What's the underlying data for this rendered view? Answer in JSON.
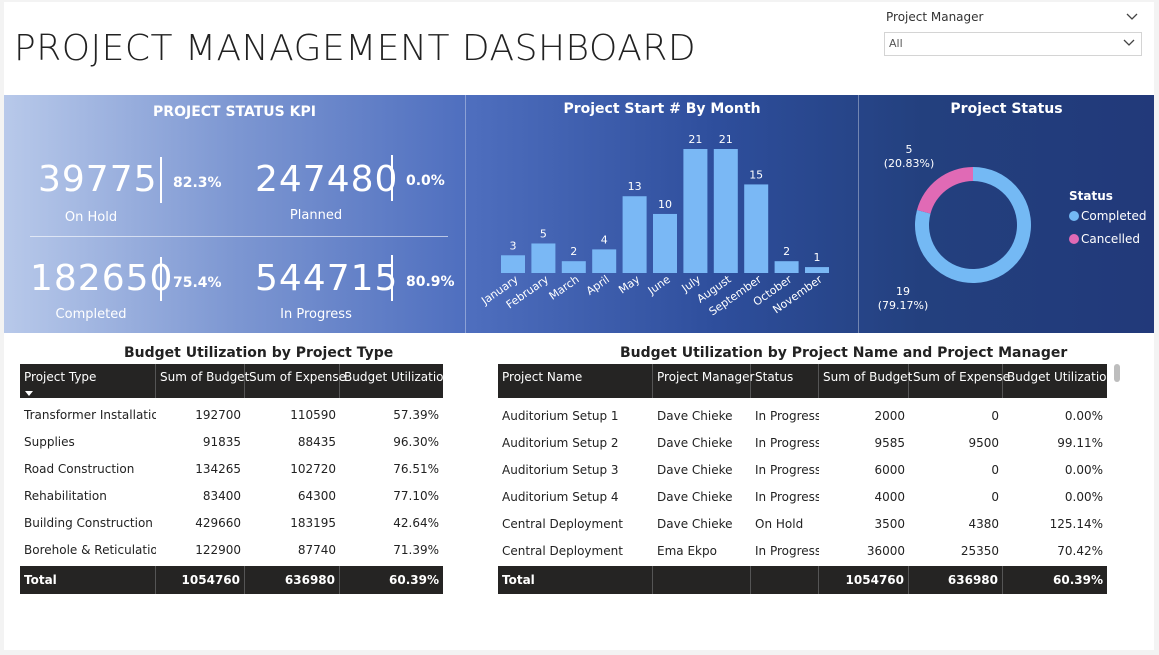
{
  "title": "PROJECT MANAGEMENT DASHBOARD",
  "slicer": {
    "label": "Project Manager",
    "value": "All"
  },
  "kpi": {
    "title": "PROJECT STATUS KPI",
    "cards": [
      {
        "value": "39775",
        "caption": "On Hold",
        "pct": "82.3%"
      },
      {
        "value": "247480",
        "caption": "Planned",
        "pct": "0.0%"
      },
      {
        "value": "182650",
        "caption": "Completed",
        "pct": "75.4%"
      },
      {
        "value": "544715",
        "caption": "In Progress",
        "pct": "80.9%"
      }
    ]
  },
  "chart_data": [
    {
      "type": "bar",
      "title": "Project Start # By Month",
      "categories": [
        "January",
        "February",
        "March",
        "April",
        "May",
        "June",
        "July",
        "August",
        "September",
        "October",
        "November"
      ],
      "values": [
        3,
        5,
        2,
        4,
        13,
        10,
        21,
        21,
        15,
        2,
        1
      ],
      "color": "#7ab8f5"
    },
    {
      "type": "pie",
      "title": "Project Status",
      "legend_title": "Status",
      "legend_placement": "right",
      "slices": [
        {
          "name": "Completed",
          "value": 19,
          "label": "19",
          "pct_label": "(79.17%)",
          "color": "#74b9f4"
        },
        {
          "name": "Cancelled",
          "value": 5,
          "label": "5",
          "pct_label": "(20.83%)",
          "color": "#e06ab5"
        }
      ]
    }
  ],
  "table1": {
    "title": "Budget Utilization by Project Type",
    "headers": [
      "Project Type",
      "Sum of Budget",
      "Sum of Expense",
      "Budget Utilization"
    ],
    "rows": [
      [
        "Transformer Installation",
        "192700",
        "110590",
        "57.39%"
      ],
      [
        "Supplies",
        "91835",
        "88435",
        "96.30%"
      ],
      [
        "Road Construction",
        "134265",
        "102720",
        "76.51%"
      ],
      [
        "Rehabilitation",
        "83400",
        "64300",
        "77.10%"
      ],
      [
        "Building Construction",
        "429660",
        "183195",
        "42.64%"
      ],
      [
        "Borehole & Reticulation",
        "122900",
        "87740",
        "71.39%"
      ]
    ],
    "total": [
      "Total",
      "1054760",
      "636980",
      "60.39%"
    ]
  },
  "table2": {
    "title": "Budget Utilization by Project Name and Project Manager",
    "headers": [
      "Project Name",
      "Project Manager",
      "Status",
      "Sum of Budget",
      "Sum of Expense",
      "Budget Utilization"
    ],
    "rows": [
      [
        "Auditorium Setup 1",
        "Dave Chieke",
        "In Progress",
        "2000",
        "0",
        "0.00%"
      ],
      [
        "Auditorium Setup 2",
        "Dave Chieke",
        "In Progress",
        "9585",
        "9500",
        "99.11%"
      ],
      [
        "Auditorium Setup 3",
        "Dave Chieke",
        "In Progress",
        "6000",
        "0",
        "0.00%"
      ],
      [
        "Auditorium Setup 4",
        "Dave Chieke",
        "In Progress",
        "4000",
        "0",
        "0.00%"
      ],
      [
        "Central Deployment",
        "Dave Chieke",
        "On Hold",
        "3500",
        "4380",
        "125.14%"
      ],
      [
        "Central Deployment",
        "Ema Ekpo",
        "In Progress",
        "36000",
        "25350",
        "70.42%"
      ]
    ],
    "total": [
      "Total",
      "",
      "",
      "1054760",
      "636980",
      "60.39%"
    ]
  }
}
